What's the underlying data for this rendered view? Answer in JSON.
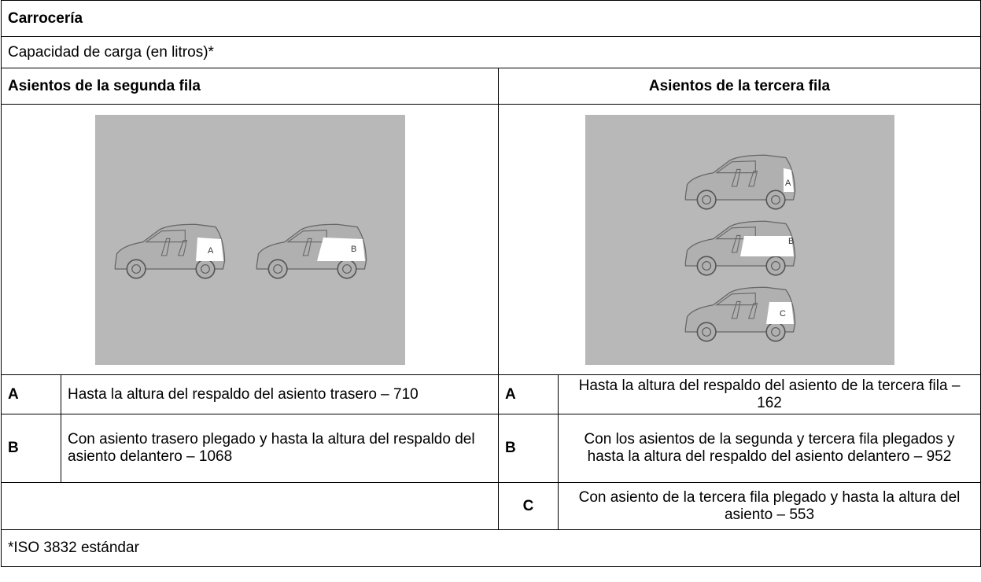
{
  "table": {
    "title": "Carrocería",
    "subtitle": "Capacidad de carga (en litros)*",
    "columns": [
      {
        "header": "Asientos de la segunda fila",
        "image_labels": [
          "A",
          "B"
        ],
        "rows": [
          {
            "key": "A",
            "text": "Hasta la altura del respaldo del asiento trasero – 710"
          },
          {
            "key": "B",
            "text": "Con asiento trasero plegado y hasta la altura del respaldo del asiento delantero – 1068"
          }
        ]
      },
      {
        "header": "Asientos de la tercera fila",
        "image_labels": [
          "A",
          "B",
          "C"
        ],
        "rows": [
          {
            "key": "A",
            "text": "Hasta la altura del respaldo del asiento de la tercera fila – 162"
          },
          {
            "key": "B",
            "text": "Con los asientos de la segunda y tercera fila plegados y hasta la altura del respaldo del asiento delantero – 952"
          },
          {
            "key": "C",
            "text": "Con asiento de la tercera fila plegado y hasta la altura del asiento – 553"
          }
        ]
      }
    ],
    "footnote": "*ISO 3832 estándar"
  }
}
